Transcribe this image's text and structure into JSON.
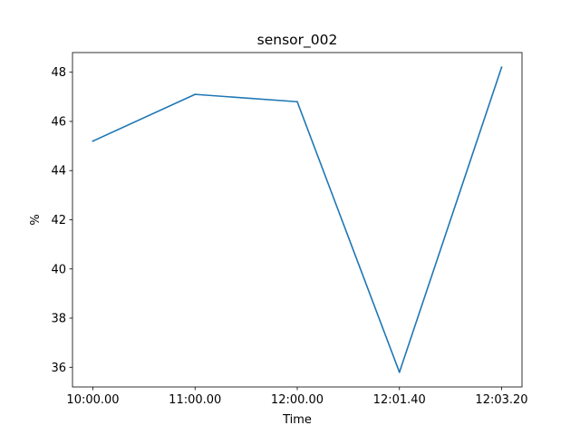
{
  "chart_data": {
    "type": "line",
    "title": "sensor_002",
    "xlabel": "Time",
    "ylabel": "%",
    "categories": [
      "10:00.00",
      "11:00.00",
      "12:00.00",
      "12:01.40",
      "12:03.20"
    ],
    "series": [
      {
        "values": [
          45.2,
          47.1,
          46.8,
          35.8,
          48.2
        ],
        "color": "#1f77b4"
      }
    ],
    "yticks": [
      36,
      38,
      40,
      42,
      44,
      46,
      48
    ],
    "ylim": [
      35.2,
      48.8
    ],
    "grid": false,
    "legend": "none"
  }
}
